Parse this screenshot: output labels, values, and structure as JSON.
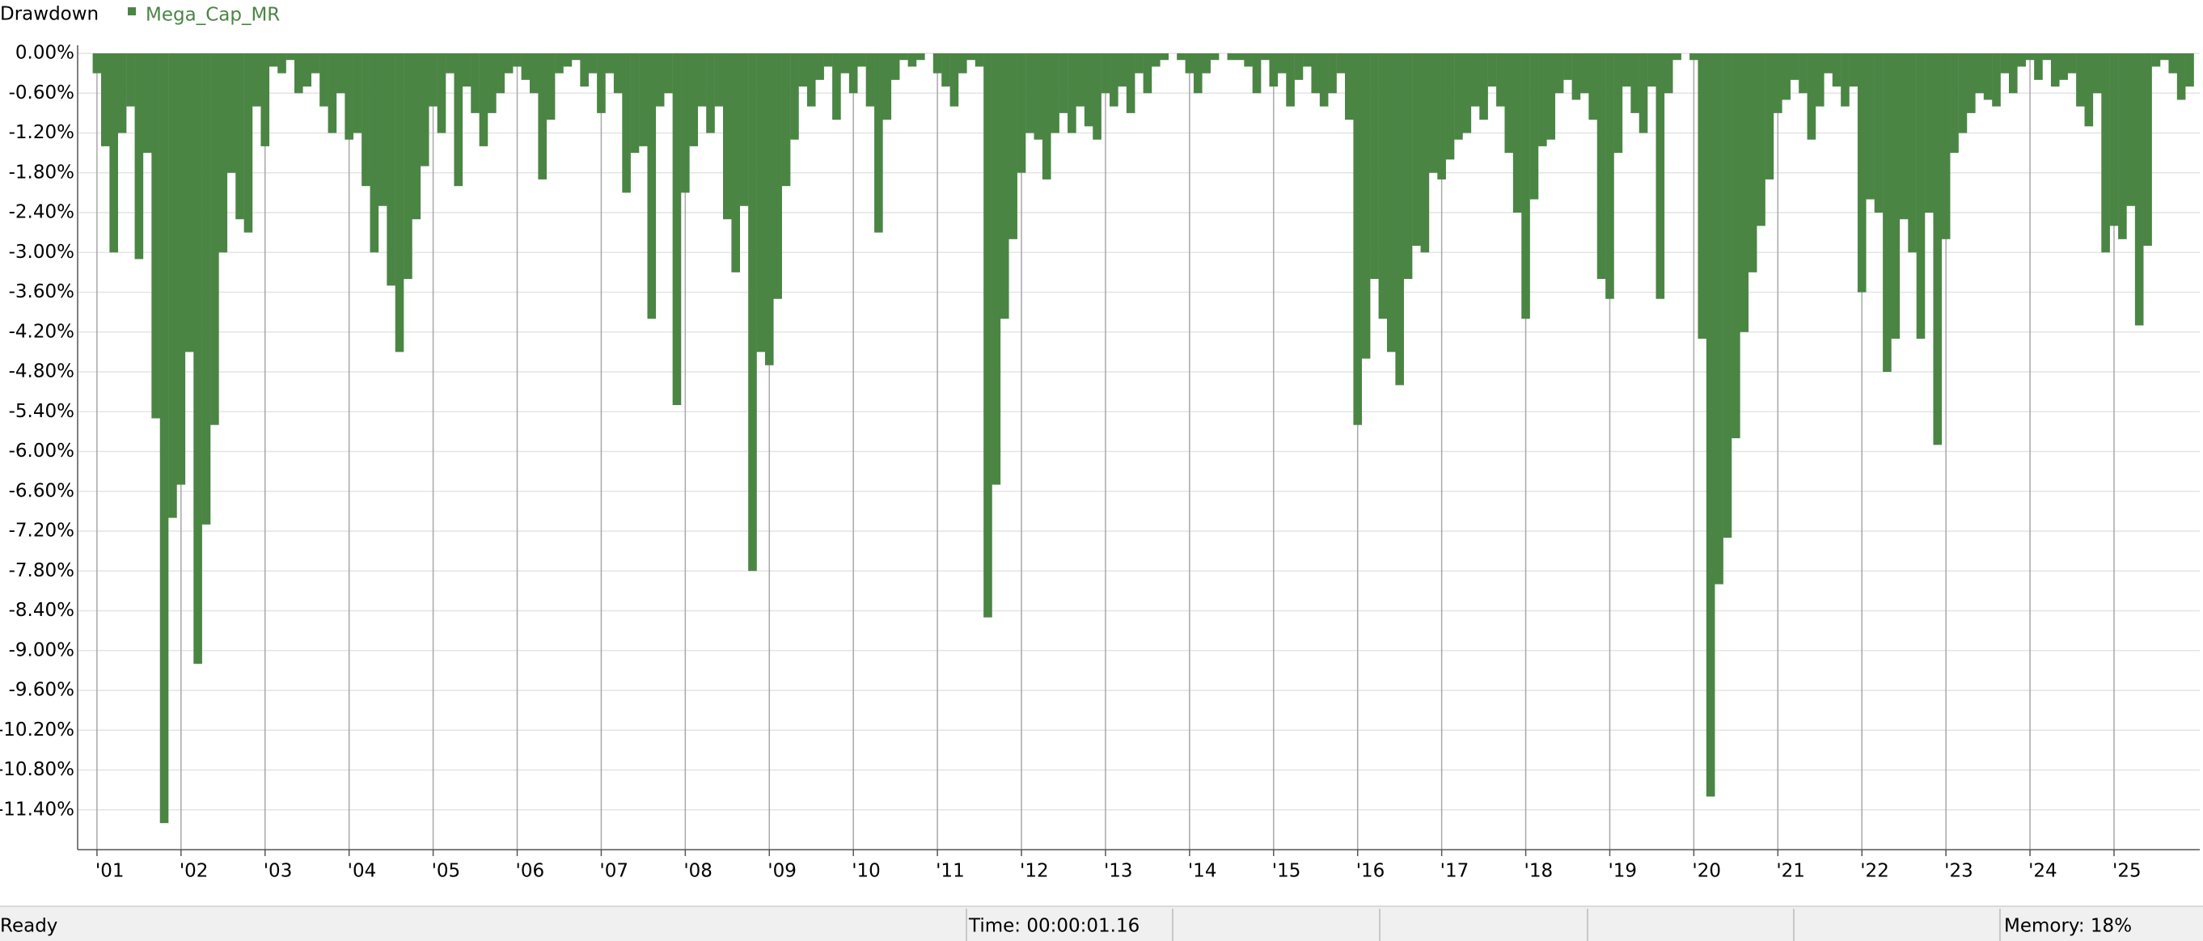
{
  "chart_data": {
    "type": "bar",
    "title": "Drawdown",
    "x": [
      1.0,
      1.1,
      1.2,
      1.3,
      1.4,
      1.5,
      1.6,
      1.7,
      1.8,
      1.9,
      2.0,
      2.1,
      2.2,
      2.3,
      2.4,
      2.5,
      2.6,
      2.7,
      2.8,
      2.9,
      3.0,
      3.1,
      3.2,
      3.3,
      3.4,
      3.5,
      3.6,
      3.7,
      3.8,
      3.9,
      4.0,
      4.1,
      4.2,
      4.3,
      4.4,
      4.5,
      4.6,
      4.7,
      4.8,
      4.9,
      5.0,
      5.1,
      5.2,
      5.3,
      5.4,
      5.5,
      5.6,
      5.7,
      5.8,
      5.9,
      6.0,
      6.1,
      6.2,
      6.3,
      6.4,
      6.5,
      6.6,
      6.7,
      6.8,
      6.9,
      7.0,
      7.1,
      7.2,
      7.3,
      7.4,
      7.5,
      7.6,
      7.7,
      7.8,
      7.9,
      8.0,
      8.1,
      8.2,
      8.3,
      8.4,
      8.5,
      8.6,
      8.7,
      8.8,
      8.9,
      9.0,
      9.1,
      9.2,
      9.3,
      9.4,
      9.5,
      9.6,
      9.7,
      9.8,
      9.9,
      10.0,
      10.1,
      10.2,
      10.3,
      10.4,
      10.5,
      10.6,
      10.7,
      10.8,
      10.9,
      11.0,
      11.1,
      11.2,
      11.3,
      11.4,
      11.5,
      11.6,
      11.7,
      11.8,
      11.9,
      12.0,
      12.1,
      12.2,
      12.3,
      12.4,
      12.5,
      12.6,
      12.7,
      12.8,
      12.9,
      13.0,
      13.1,
      13.2,
      13.3,
      13.4,
      13.5,
      13.6,
      13.7,
      13.8,
      13.9,
      14.0,
      14.1,
      14.2,
      14.3,
      14.4,
      14.5,
      14.6,
      14.7,
      14.8,
      14.9,
      15.0,
      15.1,
      15.2,
      15.3,
      15.4,
      15.5,
      15.6,
      15.7,
      15.8,
      15.9,
      16.0,
      16.1,
      16.2,
      16.3,
      16.4,
      16.5,
      16.6,
      16.7,
      16.8,
      16.9,
      17.0,
      17.1,
      17.2,
      17.3,
      17.4,
      17.5,
      17.6,
      17.7,
      17.8,
      17.9,
      18.0,
      18.1,
      18.2,
      18.3,
      18.4,
      18.5,
      18.6,
      18.7,
      18.8,
      18.9,
      19.0,
      19.1,
      19.2,
      19.3,
      19.4,
      19.5,
      19.6,
      19.7,
      19.8,
      19.9,
      20.0,
      20.1,
      20.2,
      20.3,
      20.4,
      20.5,
      20.6,
      20.7,
      20.8,
      20.9,
      21.0,
      21.1,
      21.2,
      21.3,
      21.4,
      21.5,
      21.6,
      21.7,
      21.8,
      21.9,
      22.0,
      22.1,
      22.2,
      22.3,
      22.4,
      22.5,
      22.6,
      22.7,
      22.8,
      22.9,
      23.0,
      23.1,
      23.2,
      23.3,
      23.4,
      23.5,
      23.6,
      23.7,
      23.8,
      23.9,
      24.0,
      24.1,
      24.2,
      24.3,
      24.4,
      24.5,
      24.6,
      24.7,
      24.8,
      24.9,
      25.0,
      25.1,
      25.2,
      25.3,
      25.4,
      25.5,
      25.6,
      25.7,
      25.8,
      25.9
    ],
    "series": [
      {
        "name": "Mega_Cap_MR",
        "color": "#4a8544",
        "values": [
          -0.3,
          -1.4,
          -3.0,
          -1.2,
          -0.8,
          -3.1,
          -1.5,
          -5.5,
          -11.6,
          -7.0,
          -6.5,
          -4.5,
          -9.2,
          -7.1,
          -5.6,
          -3.0,
          -1.8,
          -2.5,
          -2.7,
          -0.8,
          -1.4,
          -0.2,
          -0.3,
          -0.1,
          -0.6,
          -0.5,
          -0.3,
          -0.8,
          -1.2,
          -0.6,
          -1.3,
          -1.2,
          -2.0,
          -3.0,
          -2.3,
          -3.5,
          -4.5,
          -3.4,
          -2.5,
          -1.7,
          -0.8,
          -1.2,
          -0.3,
          -2.0,
          -0.5,
          -0.9,
          -1.4,
          -0.9,
          -0.6,
          -0.3,
          -0.2,
          -0.4,
          -0.6,
          -1.9,
          -1.0,
          -0.3,
          -0.2,
          -0.1,
          -0.5,
          -0.3,
          -0.9,
          -0.3,
          -0.6,
          -2.1,
          -1.5,
          -1.4,
          -4.0,
          -0.8,
          -0.6,
          -5.3,
          -2.1,
          -1.4,
          -0.8,
          -1.2,
          -0.8,
          -2.5,
          -3.3,
          -2.3,
          -7.8,
          -4.5,
          -4.7,
          -3.7,
          -2.0,
          -1.3,
          -0.5,
          -0.8,
          -0.4,
          -0.2,
          -1.0,
          -0.3,
          -0.6,
          -0.2,
          -0.8,
          -2.7,
          -1.0,
          -0.4,
          -0.1,
          -0.2,
          -0.1,
          0,
          -0.3,
          -0.5,
          -0.8,
          -0.3,
          -0.1,
          -0.2,
          -8.5,
          -6.5,
          -4.0,
          -2.8,
          -1.8,
          -1.2,
          -1.3,
          -1.9,
          -1.2,
          -0.9,
          -1.2,
          -0.8,
          -1.1,
          -1.3,
          -0.6,
          -0.8,
          -0.5,
          -0.9,
          -0.3,
          -0.6,
          -0.2,
          -0.1,
          0,
          -0.1,
          -0.3,
          -0.6,
          -0.3,
          -0.1,
          0,
          -0.1,
          -0.1,
          -0.2,
          -0.6,
          -0.1,
          -0.5,
          -0.3,
          -0.8,
          -0.4,
          -0.2,
          -0.6,
          -0.8,
          -0.6,
          -0.3,
          -1.0,
          -5.6,
          -4.6,
          -3.4,
          -4.0,
          -4.5,
          -5.0,
          -3.4,
          -2.9,
          -3.0,
          -1.8,
          -1.9,
          -1.6,
          -1.3,
          -1.2,
          -0.8,
          -1.0,
          -0.5,
          -0.8,
          -1.5,
          -2.4,
          -4.0,
          -2.2,
          -1.4,
          -1.3,
          -0.6,
          -0.4,
          -0.7,
          -0.6,
          -1.0,
          -3.4,
          -3.7,
          -1.5,
          -0.5,
          -0.9,
          -1.2,
          -0.5,
          -3.7,
          -0.6,
          -0.1,
          0,
          -0.1,
          -4.3,
          -11.2,
          -8.0,
          -7.3,
          -5.8,
          -4.2,
          -3.3,
          -2.6,
          -1.9,
          -0.9,
          -0.7,
          -0.4,
          -0.6,
          -1.3,
          -0.8,
          -0.3,
          -0.5,
          -0.8,
          -0.5,
          -3.6,
          -2.2,
          -2.4,
          -4.8,
          -4.3,
          -2.5,
          -3.0,
          -4.3,
          -2.4,
          -5.9,
          -2.8,
          -1.5,
          -1.2,
          -0.9,
          -0.6,
          -0.7,
          -0.8,
          -0.3,
          -0.6,
          -0.2,
          -0.1,
          -0.4,
          -0.1,
          -0.5,
          -0.4,
          -0.3,
          -0.8,
          -1.1,
          -0.6,
          -3.0,
          -2.6,
          -2.8,
          -2.3,
          -4.1,
          -2.9,
          -0.2,
          -0.1,
          -0.3,
          -0.7,
          -0.5
        ]
      }
    ],
    "xlim": [
      0.77,
      26.02
    ],
    "xticks": [
      {
        "value": 1,
        "label": "'01"
      },
      {
        "value": 2,
        "label": "'02"
      },
      {
        "value": 3,
        "label": "'03"
      },
      {
        "value": 4,
        "label": "'04"
      },
      {
        "value": 5,
        "label": "'05"
      },
      {
        "value": 6,
        "label": "'06"
      },
      {
        "value": 7,
        "label": "'07"
      },
      {
        "value": 8,
        "label": "'08"
      },
      {
        "value": 9,
        "label": "'09"
      },
      {
        "value": 10,
        "label": "'10"
      },
      {
        "value": 11,
        "label": "'11"
      },
      {
        "value": 12,
        "label": "'12"
      },
      {
        "value": 13,
        "label": "'13"
      },
      {
        "value": 14,
        "label": "'14"
      },
      {
        "value": 15,
        "label": "'15"
      },
      {
        "value": 16,
        "label": "'16"
      },
      {
        "value": 17,
        "label": "'17"
      },
      {
        "value": 18,
        "label": "'18"
      },
      {
        "value": 19,
        "label": "'19"
      },
      {
        "value": 20,
        "label": "'20"
      },
      {
        "value": 21,
        "label": "'21"
      },
      {
        "value": 22,
        "label": "'22"
      },
      {
        "value": 23,
        "label": "'23"
      },
      {
        "value": 24,
        "label": "'24"
      },
      {
        "value": 25,
        "label": "'25"
      }
    ],
    "ylim": [
      -12,
      0
    ],
    "yticks": [
      {
        "value": 0,
        "label": "0.00%"
      },
      {
        "value": -0.6,
        "label": "-0.60%"
      },
      {
        "value": -1.2,
        "label": "-1.20%"
      },
      {
        "value": -1.8,
        "label": "-1.80%"
      },
      {
        "value": -2.4,
        "label": "-2.40%"
      },
      {
        "value": -3.0,
        "label": "-3.00%"
      },
      {
        "value": -3.6,
        "label": "-3.60%"
      },
      {
        "value": -4.2,
        "label": "-4.20%"
      },
      {
        "value": -4.8,
        "label": "-4.80%"
      },
      {
        "value": -5.4,
        "label": "-5.40%"
      },
      {
        "value": -6.0,
        "label": "-6.00%"
      },
      {
        "value": -6.6,
        "label": "-6.60%"
      },
      {
        "value": -7.2,
        "label": "-7.20%"
      },
      {
        "value": -7.8,
        "label": "-7.80%"
      },
      {
        "value": -8.4,
        "label": "-8.40%"
      },
      {
        "value": -9.0,
        "label": "-9.00%"
      },
      {
        "value": -9.6,
        "label": "-9.60%"
      },
      {
        "value": -10.2,
        "label": "-10.20%"
      },
      {
        "value": -10.8,
        "label": "-10.80%"
      },
      {
        "value": -11.4,
        "label": "-11.40%"
      }
    ],
    "grid": true
  },
  "status_bar": {
    "state": "Ready",
    "time": "Time: 00:00:01.16",
    "memory": "Memory: 18%"
  }
}
